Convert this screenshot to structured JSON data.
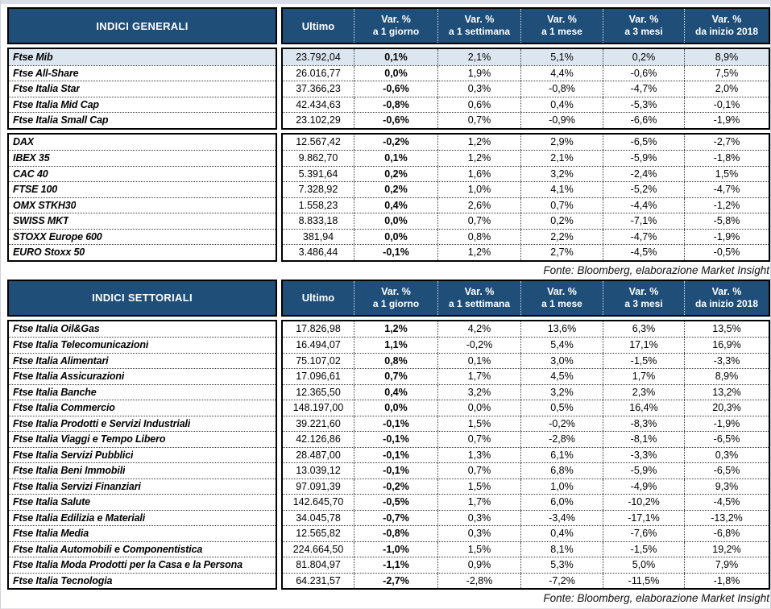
{
  "colors": {
    "header_bg": "#1F4E79",
    "header_text": "#FFFFFF",
    "highlight_row_bg": "#DCE6F1",
    "border_color": "#000000"
  },
  "tables": [
    {
      "title": "INDICI GENERALI",
      "ultimo_label": "Ultimo",
      "var_headers": [
        {
          "l1": "Var. %",
          "l2": "a 1 giorno"
        },
        {
          "l1": "Var. %",
          "l2": "a 1 settimana"
        },
        {
          "l1": "Var. %",
          "l2": "a 1 mese"
        },
        {
          "l1": "Var. %",
          "l2": "a 3 mesi"
        },
        {
          "l1": "Var. %",
          "l2": "da inizio 2018"
        }
      ],
      "groups": [
        {
          "rows": [
            {
              "name": "Ftse Mib",
              "ultimo": "23.792,04",
              "d1": "0,1%",
              "w1": "2,1%",
              "m1": "5,1%",
              "q3": "0,2%",
              "ytd": "8,9%",
              "hl": true
            },
            {
              "name": "Ftse All-Share",
              "ultimo": "26.016,77",
              "d1": "0,0%",
              "w1": "1,9%",
              "m1": "4,4%",
              "q3": "-0,6%",
              "ytd": "7,5%",
              "hl": false
            },
            {
              "name": "Ftse Italia Star",
              "ultimo": "37.366,23",
              "d1": "-0,6%",
              "w1": "0,3%",
              "m1": "-0,8%",
              "q3": "-4,7%",
              "ytd": "2,0%",
              "hl": false
            },
            {
              "name": "Ftse Italia Mid Cap",
              "ultimo": "42.434,63",
              "d1": "-0,8%",
              "w1": "0,6%",
              "m1": "0,4%",
              "q3": "-5,3%",
              "ytd": "-0,1%",
              "hl": false
            },
            {
              "name": "Ftse Italia Small Cap",
              "ultimo": "23.102,29",
              "d1": "-0,6%",
              "w1": "0,7%",
              "m1": "-0,9%",
              "q3": "-6,6%",
              "ytd": "-1,9%",
              "hl": false
            }
          ]
        },
        {
          "rows": [
            {
              "name": "DAX",
              "ultimo": "12.567,42",
              "d1": "-0,2%",
              "w1": "1,2%",
              "m1": "2,9%",
              "q3": "-6,5%",
              "ytd": "-2,7%",
              "hl": false
            },
            {
              "name": "IBEX 35",
              "ultimo": "9.862,70",
              "d1": "0,1%",
              "w1": "1,2%",
              "m1": "2,1%",
              "q3": "-5,9%",
              "ytd": "-1,8%",
              "hl": false
            },
            {
              "name": "CAC 40",
              "ultimo": "5.391,64",
              "d1": "0,2%",
              "w1": "1,6%",
              "m1": "3,2%",
              "q3": "-2,4%",
              "ytd": "1,5%",
              "hl": false
            },
            {
              "name": "FTSE 100",
              "ultimo": "7.328,92",
              "d1": "0,2%",
              "w1": "1,0%",
              "m1": "4,1%",
              "q3": "-5,2%",
              "ytd": "-4,7%",
              "hl": false
            },
            {
              "name": "OMX STKH30",
              "ultimo": "1.558,23",
              "d1": "0,4%",
              "w1": "2,6%",
              "m1": "0,7%",
              "q3": "-4,4%",
              "ytd": "-1,2%",
              "hl": false
            },
            {
              "name": "SWISS MKT",
              "ultimo": "8.833,18",
              "d1": "0,0%",
              "w1": "0,7%",
              "m1": "0,2%",
              "q3": "-7,1%",
              "ytd": "-5,8%",
              "hl": false
            },
            {
              "name": "STOXX Europe 600",
              "ultimo": "381,94",
              "d1": "0,0%",
              "w1": "0,8%",
              "m1": "2,2%",
              "q3": "-4,7%",
              "ytd": "-1,9%",
              "hl": false
            },
            {
              "name": "EURO Stoxx 50",
              "ultimo": "3.486,44",
              "d1": "-0,1%",
              "w1": "1,2%",
              "m1": "2,7%",
              "q3": "-4,5%",
              "ytd": "-0,5%",
              "hl": false
            }
          ]
        }
      ],
      "fonte": "Fonte: Bloomberg, elaborazione Market Insight"
    },
    {
      "title": "INDICI SETTORIALI",
      "ultimo_label": "Ultimo",
      "var_headers": [
        {
          "l1": "Var. %",
          "l2": "a 1 giorno"
        },
        {
          "l1": "Var. %",
          "l2": "a 1 settimana"
        },
        {
          "l1": "Var. %",
          "l2": "a 1 mese"
        },
        {
          "l1": "Var. %",
          "l2": "a 3 mesi"
        },
        {
          "l1": "Var. %",
          "l2": "da inizio 2018"
        }
      ],
      "groups": [
        {
          "rows": [
            {
              "name": "Ftse Italia Oil&Gas",
              "ultimo": "17.826,98",
              "d1": "1,2%",
              "w1": "4,2%",
              "m1": "13,6%",
              "q3": "6,3%",
              "ytd": "13,5%",
              "hl": false
            },
            {
              "name": "Ftse Italia Telecomunicazioni",
              "ultimo": "16.494,07",
              "d1": "1,1%",
              "w1": "-0,2%",
              "m1": "5,4%",
              "q3": "17,1%",
              "ytd": "16,9%",
              "hl": false
            },
            {
              "name": "Ftse Italia Alimentari",
              "ultimo": "75.107,02",
              "d1": "0,8%",
              "w1": "0,1%",
              "m1": "3,0%",
              "q3": "-1,5%",
              "ytd": "-3,3%",
              "hl": false
            },
            {
              "name": "Ftse Italia Assicurazioni",
              "ultimo": "17.096,61",
              "d1": "0,7%",
              "w1": "1,7%",
              "m1": "4,5%",
              "q3": "1,7%",
              "ytd": "8,9%",
              "hl": false
            },
            {
              "name": "Ftse Italia Banche",
              "ultimo": "12.365,50",
              "d1": "0,4%",
              "w1": "3,2%",
              "m1": "3,2%",
              "q3": "2,3%",
              "ytd": "13,2%",
              "hl": false
            },
            {
              "name": "Ftse Italia Commercio",
              "ultimo": "148.197,00",
              "d1": "0,0%",
              "w1": "0,0%",
              "m1": "0,5%",
              "q3": "16,4%",
              "ytd": "20,3%",
              "hl": false
            },
            {
              "name": "Ftse Italia Prodotti e Servizi Industriali",
              "ultimo": "39.221,60",
              "d1": "-0,1%",
              "w1": "1,5%",
              "m1": "-0,2%",
              "q3": "-8,3%",
              "ytd": "-1,9%",
              "hl": false
            },
            {
              "name": "Ftse Italia Viaggi e Tempo Libero",
              "ultimo": "42.126,86",
              "d1": "-0,1%",
              "w1": "0,7%",
              "m1": "-2,8%",
              "q3": "-8,1%",
              "ytd": "-6,5%",
              "hl": false
            },
            {
              "name": "Ftse Italia Servizi Pubblici",
              "ultimo": "28.487,00",
              "d1": "-0,1%",
              "w1": "1,3%",
              "m1": "6,1%",
              "q3": "-3,3%",
              "ytd": "0,3%",
              "hl": false
            },
            {
              "name": "Ftse Italia Beni Immobili",
              "ultimo": "13.039,12",
              "d1": "-0,1%",
              "w1": "0,7%",
              "m1": "6,8%",
              "q3": "-5,9%",
              "ytd": "-6,5%",
              "hl": false
            },
            {
              "name": "Ftse Italia Servizi Finanziari",
              "ultimo": "97.091,39",
              "d1": "-0,2%",
              "w1": "1,5%",
              "m1": "1,0%",
              "q3": "-4,9%",
              "ytd": "9,3%",
              "hl": false
            },
            {
              "name": "Ftse Italia Salute",
              "ultimo": "142.645,70",
              "d1": "-0,5%",
              "w1": "1,7%",
              "m1": "6,0%",
              "q3": "-10,2%",
              "ytd": "-4,5%",
              "hl": false
            },
            {
              "name": "Ftse Italia Edilizia e Materiali",
              "ultimo": "34.045,78",
              "d1": "-0,7%",
              "w1": "0,3%",
              "m1": "-3,4%",
              "q3": "-17,1%",
              "ytd": "-13,2%",
              "hl": false
            },
            {
              "name": "Ftse Italia Media",
              "ultimo": "12.565,82",
              "d1": "-0,8%",
              "w1": "0,3%",
              "m1": "0,4%",
              "q3": "-7,6%",
              "ytd": "-6,8%",
              "hl": false
            },
            {
              "name": "Ftse Italia Automobili e Componentistica",
              "ultimo": "224.664,50",
              "d1": "-1,0%",
              "w1": "1,5%",
              "m1": "8,1%",
              "q3": "-1,5%",
              "ytd": "19,2%",
              "hl": false
            },
            {
              "name": "Ftse Italia Moda Prodotti per la Casa e la Persona",
              "ultimo": "81.804,97",
              "d1": "-1,1%",
              "w1": "0,9%",
              "m1": "5,3%",
              "q3": "5,0%",
              "ytd": "7,9%",
              "hl": false
            },
            {
              "name": "Ftse Italia Tecnologia",
              "ultimo": "64.231,57",
              "d1": "-2,7%",
              "w1": "-2,8%",
              "m1": "-7,2%",
              "q3": "-11,5%",
              "ytd": "-1,8%",
              "hl": false
            }
          ]
        }
      ],
      "fonte": "Fonte: Bloomberg, elaborazione Market Insight"
    }
  ]
}
